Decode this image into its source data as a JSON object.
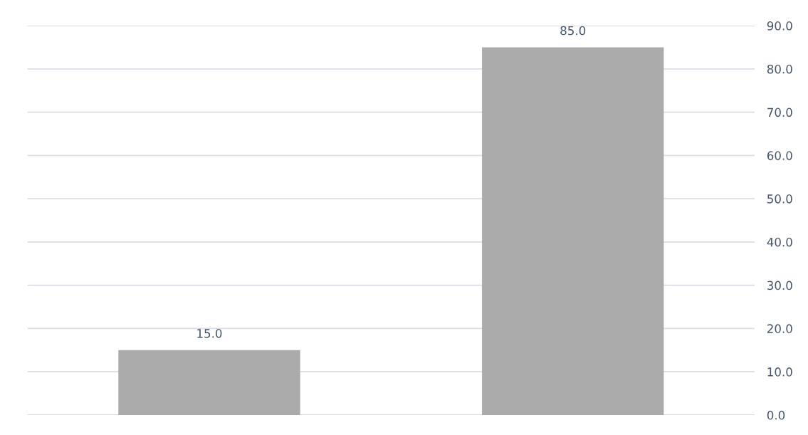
{
  "chart_data": {
    "type": "bar",
    "categories": [
      null,
      null
    ],
    "values": [
      15,
      85
    ],
    "color": "#ababab",
    "value_labels": [
      "15.0",
      "85.0"
    ],
    "ylim": [
      0,
      90
    ],
    "yticks": [
      {
        "value": 0,
        "label": "0.0"
      },
      {
        "value": 10,
        "label": "10.0"
      },
      {
        "value": 20,
        "label": "20.0"
      },
      {
        "value": 30,
        "label": "30.0"
      },
      {
        "value": 40,
        "label": "40.0"
      },
      {
        "value": 50,
        "label": "50.0"
      },
      {
        "value": 60,
        "label": "60.0"
      },
      {
        "value": 70,
        "label": "70.0"
      },
      {
        "value": 80,
        "label": "80.0"
      },
      {
        "value": 90,
        "label": "90.0"
      }
    ],
    "grid": "y"
  }
}
